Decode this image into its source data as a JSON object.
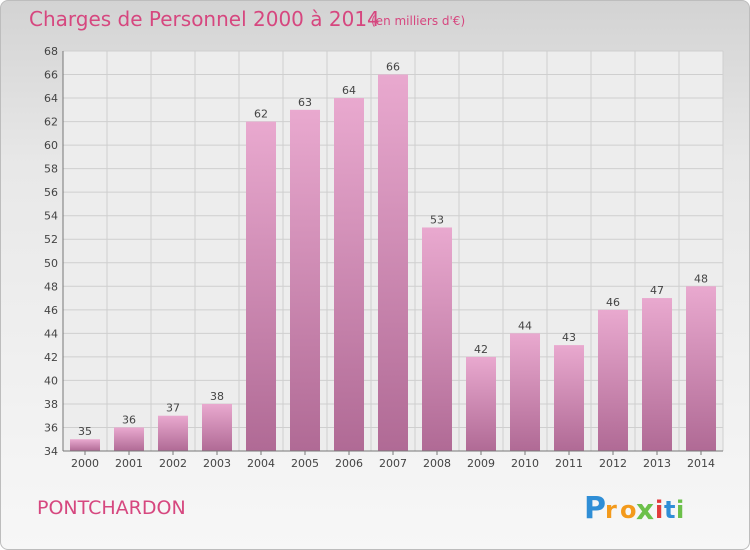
{
  "header": {
    "title": "Charges de Personnel 2000 à 2014",
    "subtitle": "(en milliers d'€)"
  },
  "footer": {
    "commune": "PONTCHARDON",
    "logo_text": "Proxiti"
  },
  "colors": {
    "accent": "#d6477f",
    "bar_top": "#e9a9cf",
    "bar_bottom": "#b06a95"
  },
  "chart_data": {
    "type": "bar",
    "categories": [
      "2000",
      "2001",
      "2002",
      "2003",
      "2004",
      "2005",
      "2006",
      "2007",
      "2008",
      "2009",
      "2010",
      "2011",
      "2012",
      "2013",
      "2014"
    ],
    "values": [
      35,
      36,
      37,
      38,
      62,
      63,
      64,
      66,
      53,
      42,
      44,
      43,
      46,
      47,
      48
    ],
    "title": "Charges de Personnel 2000 à 2014",
    "ylim": [
      34,
      68
    ],
    "yticks": [
      34,
      36,
      38,
      40,
      42,
      44,
      46,
      48,
      50,
      52,
      54,
      56,
      58,
      60,
      62,
      64,
      66,
      68
    ],
    "grid": true
  }
}
